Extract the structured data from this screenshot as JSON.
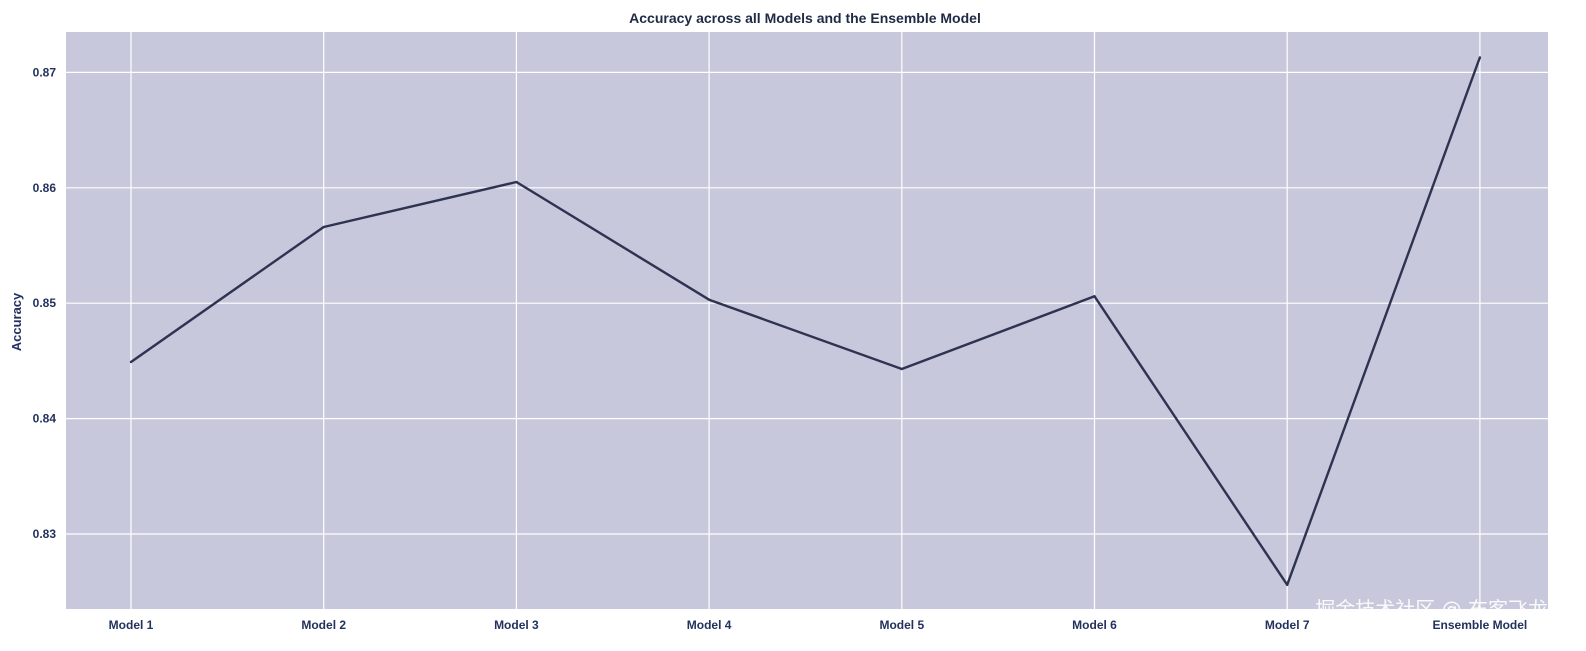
{
  "chart_data": {
    "type": "line",
    "title": "Accuracy across all Models and the Ensemble Model",
    "xlabel": "",
    "ylabel": "Accuracy",
    "categories": [
      "Model 1",
      "Model 2",
      "Model 3",
      "Model 4",
      "Model 5",
      "Model 6",
      "Model 7",
      "Ensemble Model"
    ],
    "series": [
      {
        "values": [
          0.8449,
          0.8566,
          0.8605,
          0.8503,
          0.8443,
          0.8506,
          0.8256,
          0.8713
        ]
      }
    ],
    "ylim": [
      0.8235,
      0.8735
    ],
    "yticks": [
      0.83,
      0.84,
      0.85,
      0.86,
      0.87
    ],
    "ytick_labels": [
      "0.83",
      "0.84",
      "0.85",
      "0.86",
      "0.87"
    ],
    "grid": true,
    "legend": "none"
  },
  "watermark": "掘金技术社区 @ 布客飞龙",
  "colors": {
    "plot_background": "#c8c8dc",
    "grid": "#ffffff",
    "line": "#2d3350",
    "text": "#22325e"
  }
}
